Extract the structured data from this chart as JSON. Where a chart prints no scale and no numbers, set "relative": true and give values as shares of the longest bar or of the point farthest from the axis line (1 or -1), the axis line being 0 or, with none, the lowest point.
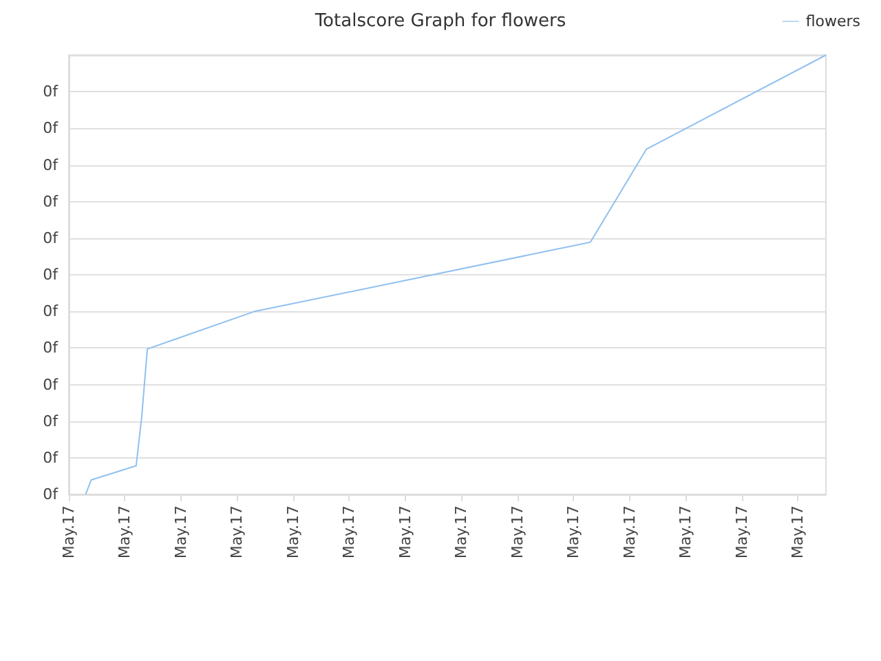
{
  "chart_data": {
    "type": "line",
    "title": "Totalscore Graph for flowers",
    "categories": [
      "May.17",
      null,
      null,
      null,
      null,
      null,
      null,
      null,
      null,
      null,
      "May.17",
      null,
      null,
      null,
      null,
      null,
      null,
      null,
      null,
      null,
      "May.17",
      null,
      null,
      null,
      null,
      null,
      null,
      null,
      null,
      null,
      "May.17",
      null,
      null,
      null,
      null,
      null,
      null,
      null,
      null,
      null,
      "May.17",
      null,
      null,
      null,
      null,
      null,
      null,
      null,
      null,
      null,
      "May.17",
      null,
      null,
      null,
      null,
      null,
      null,
      null,
      null,
      null,
      "May.17",
      null,
      null,
      null,
      null,
      null,
      null,
      null,
      null,
      null,
      "May.17",
      null,
      null,
      null,
      null,
      null,
      null,
      null,
      null,
      null,
      "May.17",
      null,
      null,
      null,
      null,
      null,
      null,
      null,
      null,
      null,
      "May.17",
      null,
      null,
      null,
      null,
      null,
      null,
      null,
      null,
      null,
      "May.17",
      null,
      null,
      null,
      null,
      null,
      null,
      null,
      null,
      null,
      "May.17",
      null,
      null,
      null,
      null,
      null,
      null,
      null,
      null,
      null,
      "May.17",
      null,
      null,
      null,
      null,
      null,
      null,
      null,
      null,
      null,
      "May.17",
      null,
      null,
      null,
      null,
      null
    ],
    "series": [
      {
        "name": "flowers",
        "color": "#90c0f0",
        "values": [
          null,
          null,
          null,
          0,
          0.033,
          null,
          null,
          null,
          null,
          null,
          null,
          null,
          0.065,
          0.177,
          0.331,
          null,
          null,
          null,
          null,
          null,
          null,
          null,
          null,
          null,
          null,
          null,
          null,
          null,
          null,
          null,
          null,
          null,
          null,
          0.416,
          null,
          null,
          null,
          null,
          null,
          null,
          null,
          null,
          null,
          null,
          null,
          null,
          null,
          null,
          null,
          null,
          null,
          null,
          null,
          null,
          null,
          null,
          null,
          null,
          null,
          null,
          null,
          null,
          null,
          null,
          null,
          null,
          null,
          null,
          null,
          null,
          null,
          null,
          null,
          null,
          null,
          null,
          null,
          null,
          null,
          null,
          null,
          null,
          null,
          null,
          null,
          null,
          null,
          null,
          null,
          null,
          null,
          null,
          null,
          0.574,
          null,
          null,
          null,
          null,
          null,
          null,
          null,
          null,
          null,
          0.786,
          null,
          null,
          null,
          null,
          null,
          null,
          null,
          null,
          null,
          null,
          null,
          null,
          null,
          null,
          null,
          null,
          null,
          null,
          null,
          null,
          null,
          null,
          null,
          null,
          null,
          null,
          null,
          null,
          null,
          null,
          null,
          1
        ]
      }
    ],
    "relative": true,
    "annotations": [
      "0f",
      "0f",
      "0f",
      "0f",
      "0f",
      "0f",
      "0f",
      "0f",
      "0f",
      "0f",
      "0f",
      "0f"
    ],
    "grid": "y",
    "legend": "top right",
    "marker": "none",
    "line_style": "solid"
  }
}
